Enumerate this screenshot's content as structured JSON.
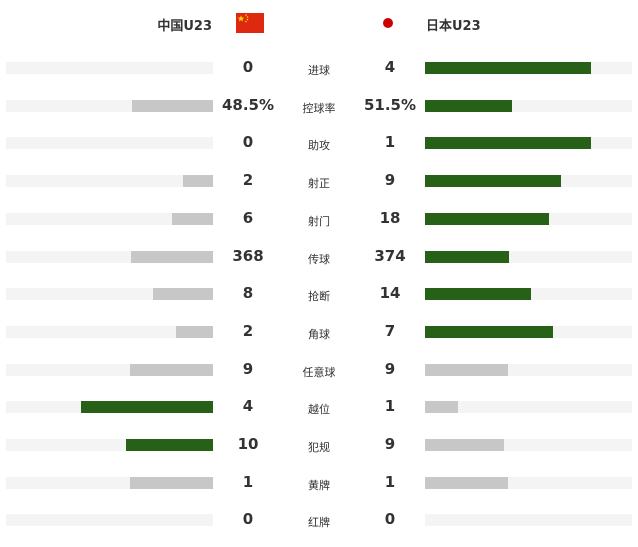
{
  "header": {
    "home_team": "中国U23",
    "away_team": "日本U23",
    "home_flag_icon": "china-flag-icon",
    "away_flag_icon": "japan-flag-icon"
  },
  "colors": {
    "leader_bar": "#276118",
    "other_bar": "#c7c7c7",
    "track": "#f4f4f4"
  },
  "stats": [
    {
      "label": "进球",
      "home": "0",
      "away": "4",
      "home_fill": 0,
      "away_fill": 0.8,
      "leader": "away"
    },
    {
      "label": "控球率",
      "home": "48.5%",
      "away": "51.5%",
      "home_fill": 0.39,
      "away_fill": 0.42,
      "leader": "away"
    },
    {
      "label": "助攻",
      "home": "0",
      "away": "1",
      "home_fill": 0,
      "away_fill": 0.8,
      "leader": "away"
    },
    {
      "label": "射正",
      "home": "2",
      "away": "9",
      "home_fill": 0.145,
      "away_fill": 0.655,
      "leader": "away"
    },
    {
      "label": "射门",
      "home": "6",
      "away": "18",
      "home_fill": 0.2,
      "away_fill": 0.6,
      "leader": "away"
    },
    {
      "label": "传球",
      "home": "368",
      "away": "374",
      "home_fill": 0.395,
      "away_fill": 0.405,
      "leader": "away"
    },
    {
      "label": "抢断",
      "home": "8",
      "away": "14",
      "home_fill": 0.29,
      "away_fill": 0.51,
      "leader": "away"
    },
    {
      "label": "角球",
      "home": "2",
      "away": "7",
      "home_fill": 0.18,
      "away_fill": 0.62,
      "leader": "away"
    },
    {
      "label": "任意球",
      "home": "9",
      "away": "9",
      "home_fill": 0.4,
      "away_fill": 0.4,
      "leader": "none"
    },
    {
      "label": "越位",
      "home": "4",
      "away": "1",
      "home_fill": 0.64,
      "away_fill": 0.16,
      "leader": "home"
    },
    {
      "label": "犯规",
      "home": "10",
      "away": "9",
      "home_fill": 0.42,
      "away_fill": 0.38,
      "leader": "home"
    },
    {
      "label": "黄牌",
      "home": "1",
      "away": "1",
      "home_fill": 0.4,
      "away_fill": 0.4,
      "leader": "none"
    },
    {
      "label": "红牌",
      "home": "0",
      "away": "0",
      "home_fill": 0,
      "away_fill": 0,
      "leader": "none"
    }
  ]
}
